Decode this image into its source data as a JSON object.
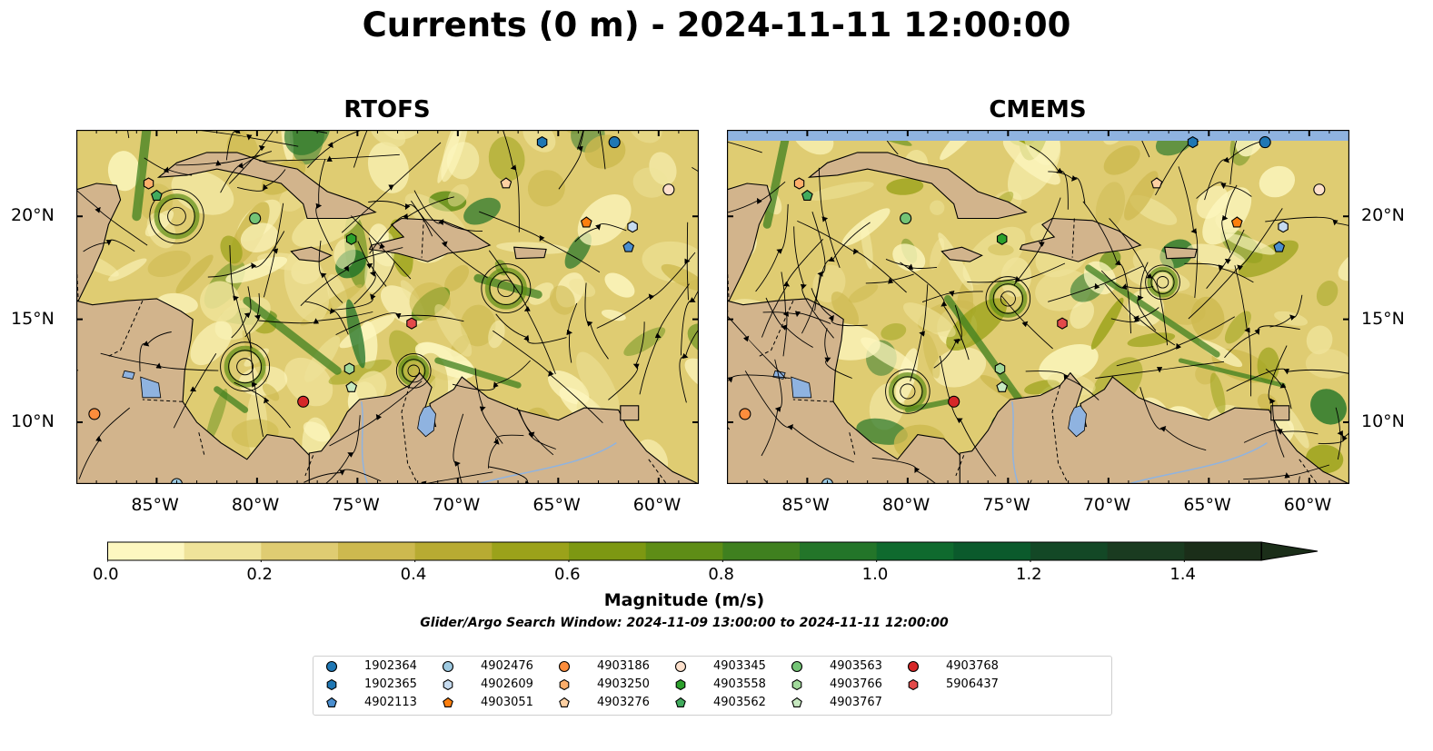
{
  "title": "Currents (0 m) - 2024-11-11 12:00:00",
  "panels": [
    {
      "name": "rtofs",
      "title": "RTOFS"
    },
    {
      "name": "cmems",
      "title": "CMEMS"
    }
  ],
  "map": {
    "lon_range": [
      -89,
      -58
    ],
    "lat_range": [
      7,
      24.2
    ],
    "lon_ticks": [
      {
        "lon": -85,
        "label": "85°W"
      },
      {
        "lon": -80,
        "label": "80°W"
      },
      {
        "lon": -75,
        "label": "75°W"
      },
      {
        "lon": -70,
        "label": "70°W"
      },
      {
        "lon": -65,
        "label": "65°W"
      },
      {
        "lon": -60,
        "label": "60°W"
      }
    ],
    "lat_ticks": [
      {
        "lat": 10,
        "label": "10°N"
      },
      {
        "lat": 15,
        "label": "15°N"
      },
      {
        "lat": 20,
        "label": "20°N"
      }
    ],
    "land_color": "#d2b48c",
    "water_body_color": "#8fb3e0"
  },
  "colorbar": {
    "label": "Magnitude (m/s)",
    "min": 0.0,
    "max": 1.5,
    "extend": "max",
    "ticks": [
      {
        "value": 0.0,
        "label": "0.0"
      },
      {
        "value": 0.2,
        "label": "0.2"
      },
      {
        "value": 0.4,
        "label": "0.4"
      },
      {
        "value": 0.6,
        "label": "0.6"
      },
      {
        "value": 0.8,
        "label": "0.8"
      },
      {
        "value": 1.0,
        "label": "1.0"
      },
      {
        "value": 1.2,
        "label": "1.2"
      },
      {
        "value": 1.4,
        "label": "1.4"
      }
    ],
    "colors": [
      "#fdf7c0",
      "#efe39a",
      "#dfcc72",
      "#cdb94f",
      "#b8ab32",
      "#9ba21a",
      "#7d9812",
      "#5e8d16",
      "#3f801f",
      "#237529",
      "#0f6a2e",
      "#0b5a2c",
      "#134826",
      "#1a3b20",
      "#1b2e19"
    ]
  },
  "search_window": "Glider/Argo Search Window: 2024-11-09 13:00:00 to 2024-11-11 12:00:00",
  "floats": [
    {
      "id": "1902364",
      "marker": "circle",
      "color": "#1f77b4",
      "positions": [
        [
          -62.2,
          23.6
        ]
      ]
    },
    {
      "id": "1902365",
      "marker": "hexagon",
      "color": "#1f77b4",
      "positions": [
        [
          -65.8,
          23.6
        ]
      ]
    },
    {
      "id": "4902113",
      "marker": "pentagon",
      "color": "#4a8ecf",
      "positions": [
        [
          -61.5,
          18.5
        ]
      ]
    },
    {
      "id": "4902476",
      "marker": "circle",
      "color": "#9ecae1",
      "positions": [
        [
          -84.0,
          7.0
        ]
      ]
    },
    {
      "id": "4902609",
      "marker": "hexagon",
      "color": "#c6dbef",
      "positions": [
        [
          -61.3,
          19.5
        ]
      ]
    },
    {
      "id": "4903051",
      "marker": "pentagon",
      "color": "#fd7f0e",
      "positions": [
        [
          -63.6,
          19.7
        ]
      ]
    },
    {
      "id": "4903186",
      "marker": "circle",
      "color": "#fd8d3c",
      "positions": [
        [
          -88.1,
          10.4
        ]
      ]
    },
    {
      "id": "4903250",
      "marker": "hexagon",
      "color": "#fdae6b",
      "positions": [
        [
          -85.4,
          21.6
        ]
      ]
    },
    {
      "id": "4903276",
      "marker": "pentagon",
      "color": "#fdd0a2",
      "positions": [
        [
          -67.6,
          21.6
        ]
      ]
    },
    {
      "id": "4903345",
      "marker": "circle",
      "color": "#fde0cc",
      "positions": [
        [
          -59.5,
          21.3
        ]
      ]
    },
    {
      "id": "4903558",
      "marker": "hexagon",
      "color": "#2ca02c",
      "positions": [
        [
          -75.3,
          18.9
        ]
      ]
    },
    {
      "id": "4903562",
      "marker": "pentagon",
      "color": "#41ab5d",
      "positions": [
        [
          -85.0,
          21.0
        ]
      ]
    },
    {
      "id": "4903563",
      "marker": "circle",
      "color": "#74c476",
      "positions": [
        [
          -80.1,
          19.9
        ]
      ]
    },
    {
      "id": "4903766",
      "marker": "hexagon",
      "color": "#a1d99b",
      "positions": [
        [
          -75.4,
          12.6
        ]
      ]
    },
    {
      "id": "4903767",
      "marker": "pentagon",
      "color": "#c7e9c0",
      "positions": [
        [
          -75.3,
          11.7
        ]
      ]
    },
    {
      "id": "4903768",
      "marker": "circle",
      "color": "#d62728",
      "positions": [
        [
          -77.7,
          11.0
        ]
      ]
    },
    {
      "id": "5906437",
      "marker": "hexagon",
      "color": "#e34a4a",
      "positions": [
        [
          -72.3,
          14.8
        ]
      ]
    }
  ]
}
